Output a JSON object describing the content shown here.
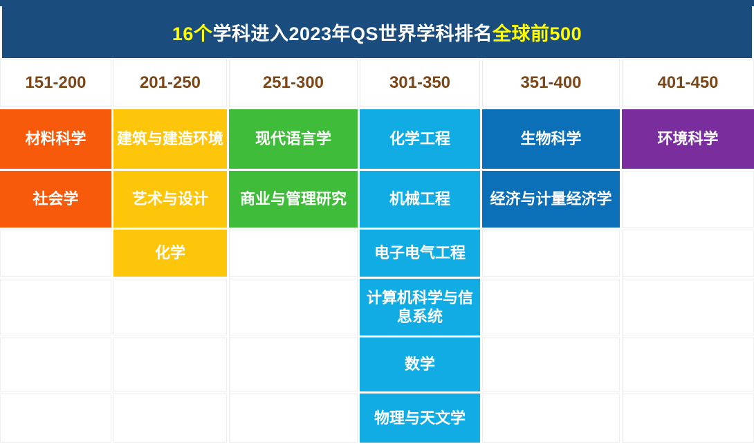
{
  "title": {
    "prefix": "16个",
    "middle": "学科进入2023年QS世界学科排名",
    "suffix": "全球前500"
  },
  "styles": {
    "title_bg": "#1A4C7D",
    "title_highlight": "#FFFF00",
    "title_text": "#FFFFFF",
    "header_text_color": "#7C4718",
    "grid_line": "#ECECEC",
    "subject_text": "#FFFFFF"
  },
  "columns": [
    {
      "range": "151-200",
      "color": "#F75A0A",
      "subjects": [
        "材料科学",
        "社会学"
      ]
    },
    {
      "range": "201-250",
      "color": "#FDC60B",
      "subjects": [
        "建筑与建造环境",
        "艺术与设计",
        "化学"
      ]
    },
    {
      "range": "251-300",
      "color": "#3FBD3A",
      "subjects": [
        "现代语言学",
        "商业与管理研究"
      ]
    },
    {
      "range": "301-350",
      "color": "#12ACE4",
      "subjects": [
        "化学工程",
        "机械工程",
        "电子电气工程",
        "计算机科学与信息系统",
        "数学",
        "物理与天文学"
      ]
    },
    {
      "range": "351-400",
      "color": "#0C70B8",
      "subjects": [
        "生物科学",
        "经济与计量经济学"
      ]
    },
    {
      "range": "401-450",
      "color": "#7A2E9D",
      "subjects": [
        "环境科学"
      ]
    }
  ],
  "chart_data": {
    "type": "table",
    "title": "16个学科进入2023年QS世界学科排名全球前500",
    "total_subjects": 16,
    "columns": [
      "151-200",
      "201-250",
      "251-300",
      "301-350",
      "351-400",
      "401-450"
    ],
    "rows": [
      [
        "材料科学",
        "建筑与建造环境",
        "现代语言学",
        "化学工程",
        "生物科学",
        "环境科学"
      ],
      [
        "社会学",
        "艺术与设计",
        "商业与管理研究",
        "机械工程",
        "经济与计量经济学",
        ""
      ],
      [
        "",
        "化学",
        "",
        "电子电气工程",
        "",
        ""
      ],
      [
        "",
        "",
        "",
        "计算机科学与信息系统",
        "",
        ""
      ],
      [
        "",
        "",
        "",
        "数学",
        "",
        ""
      ],
      [
        "",
        "",
        "",
        "物理与天文学",
        "",
        ""
      ]
    ]
  }
}
